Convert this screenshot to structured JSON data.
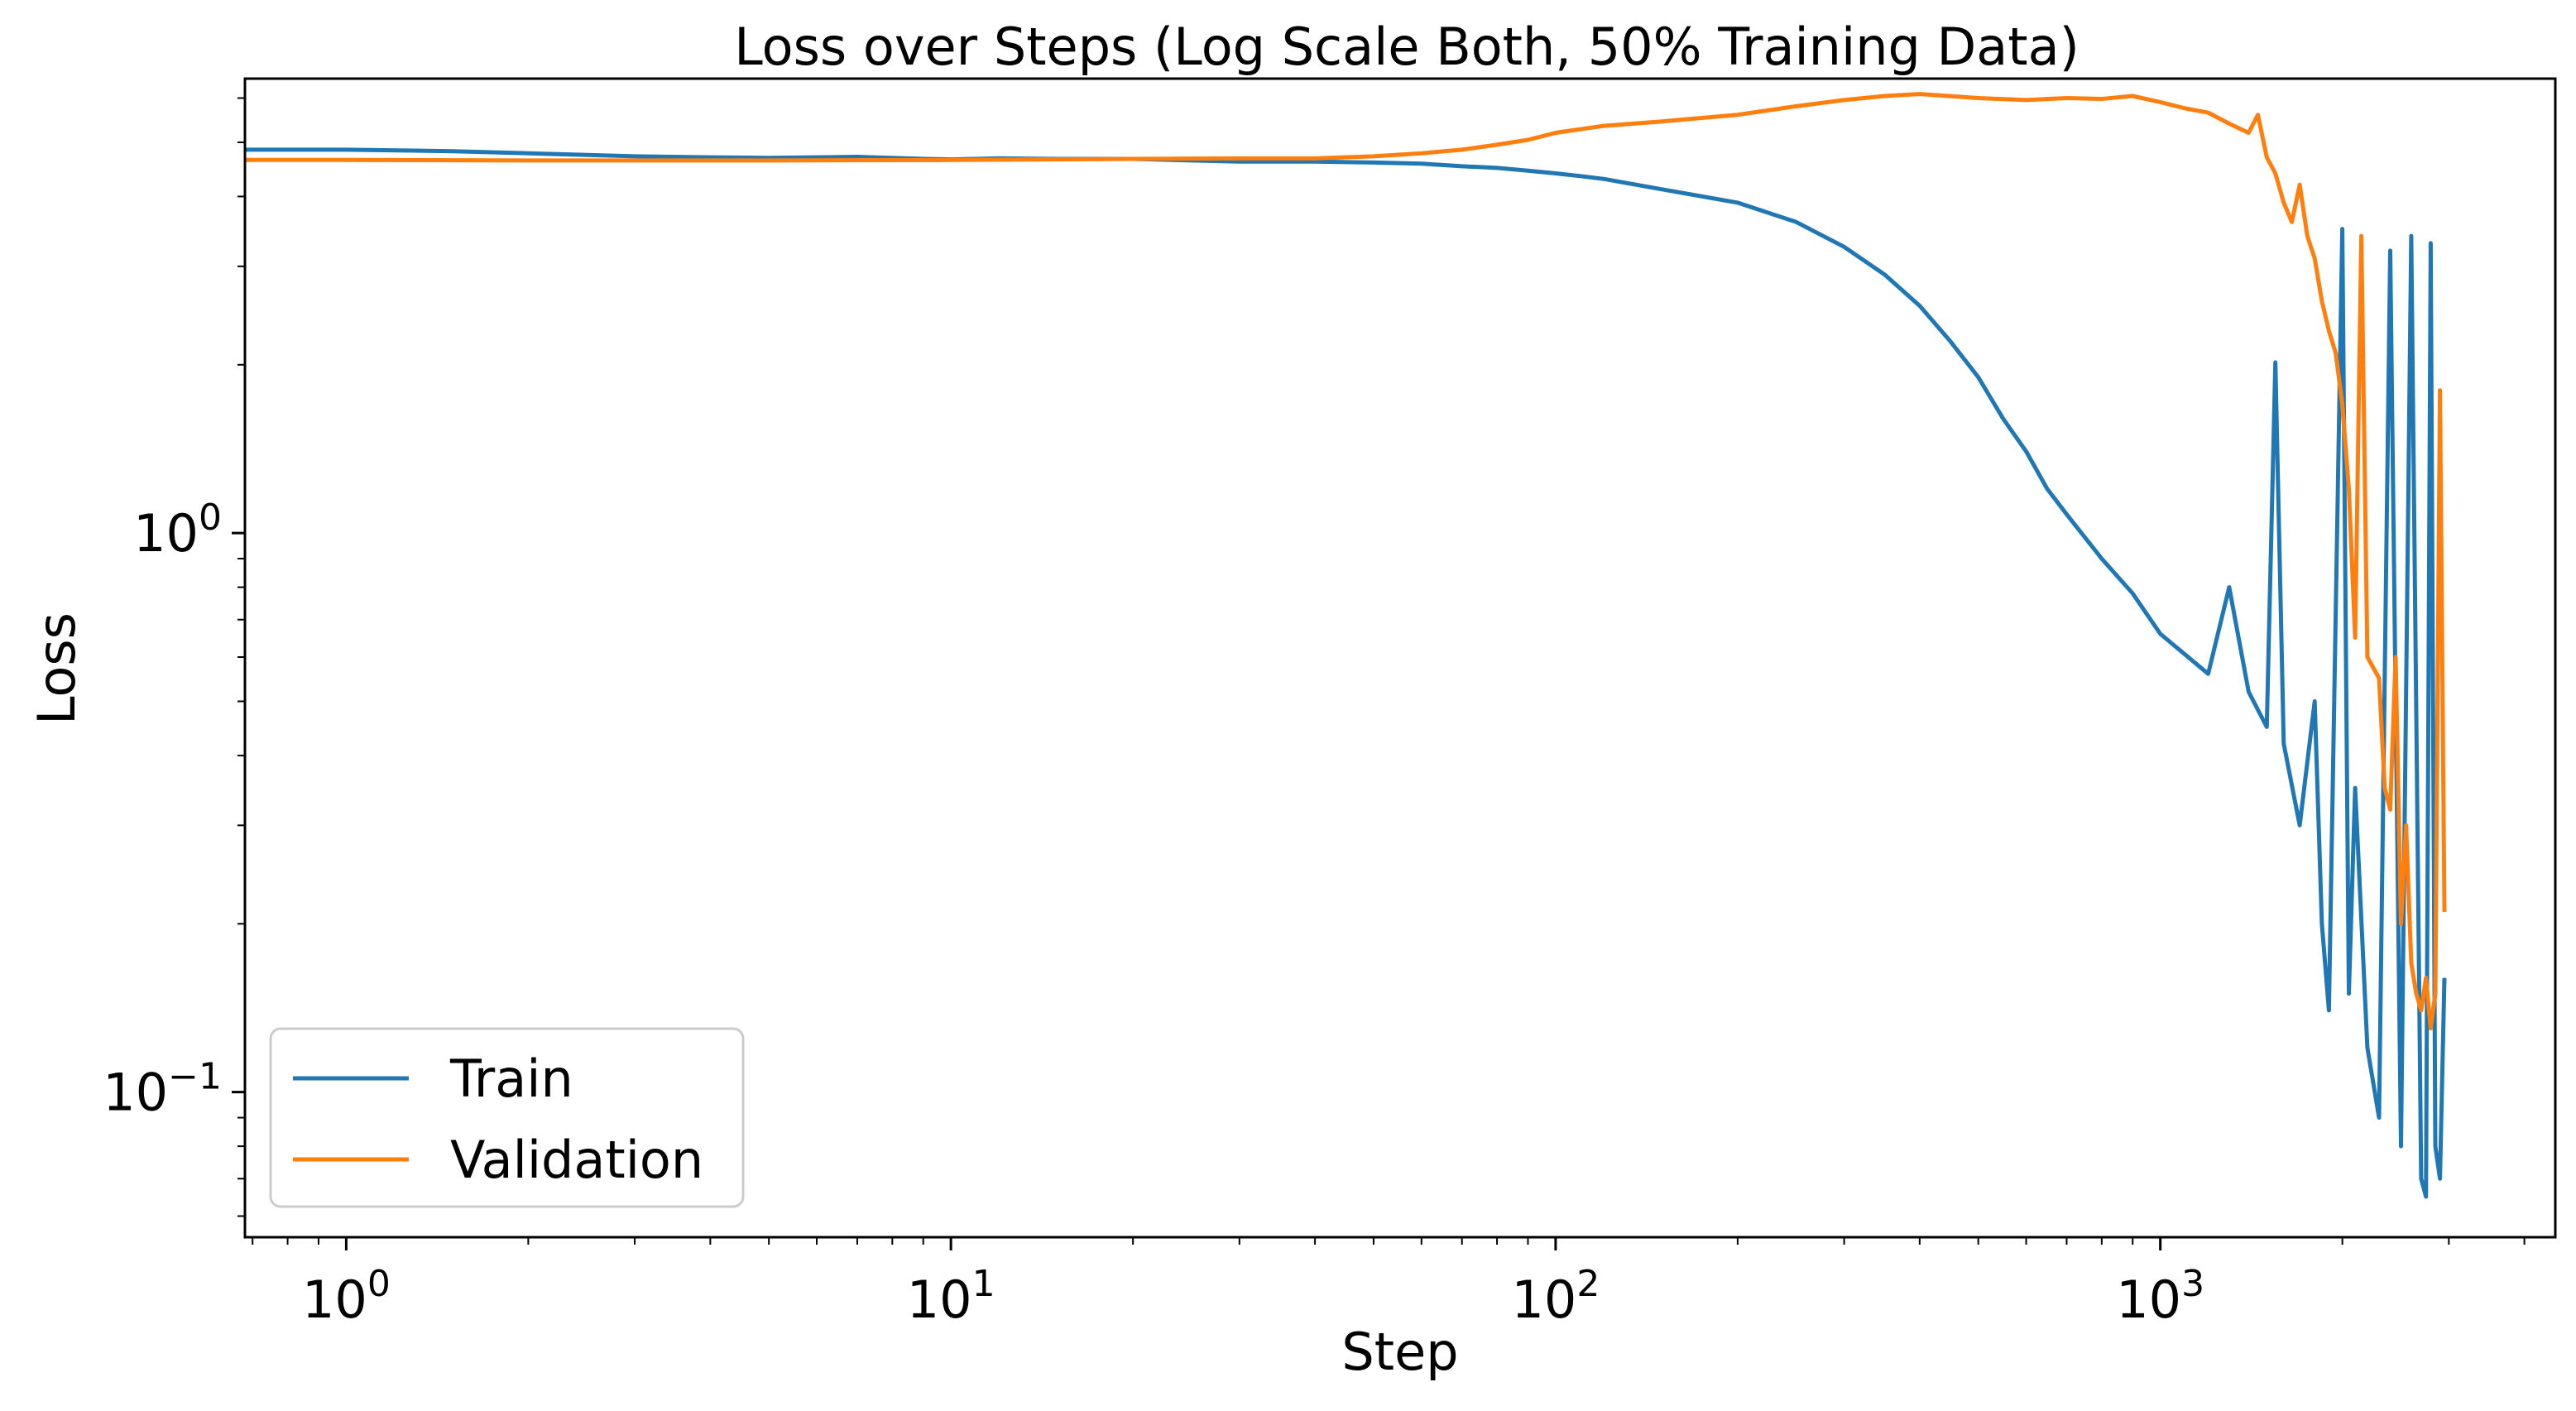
{
  "chart_data": {
    "type": "line",
    "title": "Loss over Steps (Log Scale Both, 50% Training Data)",
    "xlabel": "Step",
    "ylabel": "Loss",
    "xscale": "log",
    "yscale": "log",
    "xlim": [
      0.68,
      4500
    ],
    "ylim": [
      0.055,
      6.5
    ],
    "x_ticks": [
      {
        "value": 1,
        "base": "10",
        "exp": "0"
      },
      {
        "value": 10,
        "base": "10",
        "exp": "1"
      },
      {
        "value": 100,
        "base": "10",
        "exp": "2"
      },
      {
        "value": 1000,
        "base": "10",
        "exp": "3"
      }
    ],
    "y_ticks": [
      {
        "value": 0.1,
        "base": "10",
        "exp": "−1"
      },
      {
        "value": 1,
        "base": "10",
        "exp": "0"
      }
    ],
    "legend_position": "lower-left",
    "series": [
      {
        "name": "Train",
        "color": "#1f77b4",
        "points": [
          [
            0.68,
            4.85
          ],
          [
            1,
            4.85
          ],
          [
            1.5,
            4.82
          ],
          [
            2,
            4.78
          ],
          [
            3,
            4.72
          ],
          [
            4,
            4.7
          ],
          [
            5,
            4.69
          ],
          [
            7,
            4.71
          ],
          [
            9,
            4.67
          ],
          [
            10,
            4.66
          ],
          [
            12,
            4.68
          ],
          [
            15,
            4.67
          ],
          [
            20,
            4.67
          ],
          [
            25,
            4.64
          ],
          [
            30,
            4.62
          ],
          [
            40,
            4.62
          ],
          [
            50,
            4.6
          ],
          [
            60,
            4.58
          ],
          [
            70,
            4.53
          ],
          [
            80,
            4.5
          ],
          [
            90,
            4.45
          ],
          [
            100,
            4.4
          ],
          [
            110,
            4.35
          ],
          [
            120,
            4.3
          ],
          [
            150,
            4.12
          ],
          [
            200,
            3.9
          ],
          [
            250,
            3.6
          ],
          [
            300,
            3.25
          ],
          [
            350,
            2.9
          ],
          [
            400,
            2.55
          ],
          [
            450,
            2.2
          ],
          [
            500,
            1.9
          ],
          [
            550,
            1.6
          ],
          [
            600,
            1.4
          ],
          [
            650,
            1.2
          ],
          [
            700,
            1.08
          ],
          [
            800,
            0.9
          ],
          [
            900,
            0.78
          ],
          [
            1000,
            0.66
          ],
          [
            1200,
            0.56
          ],
          [
            1300,
            0.8
          ],
          [
            1400,
            0.52
          ],
          [
            1500,
            0.45
          ],
          [
            1550,
            2.02
          ],
          [
            1600,
            0.42
          ],
          [
            1700,
            0.3
          ],
          [
            1800,
            0.5
          ],
          [
            1850,
            0.2
          ],
          [
            1900,
            0.14
          ],
          [
            2000,
            3.5
          ],
          [
            2050,
            0.15
          ],
          [
            2100,
            0.35
          ],
          [
            2200,
            0.12
          ],
          [
            2300,
            0.09
          ],
          [
            2400,
            3.2
          ],
          [
            2500,
            0.08
          ],
          [
            2600,
            3.4
          ],
          [
            2700,
            0.07
          ],
          [
            2750,
            0.065
          ],
          [
            2800,
            3.3
          ],
          [
            2850,
            0.08
          ],
          [
            2900,
            0.07
          ],
          [
            2950,
            0.16
          ]
        ]
      },
      {
        "name": "Validation",
        "color": "#ff7f0e",
        "points": [
          [
            0.68,
            4.65
          ],
          [
            1,
            4.65
          ],
          [
            2,
            4.64
          ],
          [
            5,
            4.64
          ],
          [
            10,
            4.65
          ],
          [
            20,
            4.67
          ],
          [
            30,
            4.68
          ],
          [
            40,
            4.68
          ],
          [
            50,
            4.72
          ],
          [
            60,
            4.78
          ],
          [
            70,
            4.85
          ],
          [
            80,
            4.95
          ],
          [
            90,
            5.05
          ],
          [
            100,
            5.2
          ],
          [
            120,
            5.35
          ],
          [
            150,
            5.45
          ],
          [
            200,
            5.6
          ],
          [
            250,
            5.8
          ],
          [
            300,
            5.95
          ],
          [
            350,
            6.05
          ],
          [
            400,
            6.1
          ],
          [
            500,
            6.0
          ],
          [
            600,
            5.95
          ],
          [
            700,
            6.0
          ],
          [
            800,
            5.98
          ],
          [
            900,
            6.05
          ],
          [
            1000,
            5.9
          ],
          [
            1100,
            5.75
          ],
          [
            1200,
            5.65
          ],
          [
            1300,
            5.4
          ],
          [
            1400,
            5.2
          ],
          [
            1450,
            5.6
          ],
          [
            1500,
            4.7
          ],
          [
            1550,
            4.4
          ],
          [
            1600,
            3.9
          ],
          [
            1650,
            3.6
          ],
          [
            1700,
            4.2
          ],
          [
            1750,
            3.4
          ],
          [
            1800,
            3.1
          ],
          [
            1850,
            2.6
          ],
          [
            1900,
            2.3
          ],
          [
            1950,
            2.1
          ],
          [
            2000,
            1.7
          ],
          [
            2050,
            1.2
          ],
          [
            2100,
            0.65
          ],
          [
            2150,
            3.4
          ],
          [
            2200,
            0.6
          ],
          [
            2300,
            0.55
          ],
          [
            2350,
            0.35
          ],
          [
            2400,
            0.32
          ],
          [
            2450,
            0.6
          ],
          [
            2500,
            0.2
          ],
          [
            2550,
            0.3
          ],
          [
            2600,
            0.17
          ],
          [
            2650,
            0.15
          ],
          [
            2700,
            0.14
          ],
          [
            2750,
            0.16
          ],
          [
            2800,
            0.13
          ],
          [
            2850,
            0.15
          ],
          [
            2900,
            1.8
          ],
          [
            2950,
            0.21
          ]
        ]
      }
    ]
  }
}
